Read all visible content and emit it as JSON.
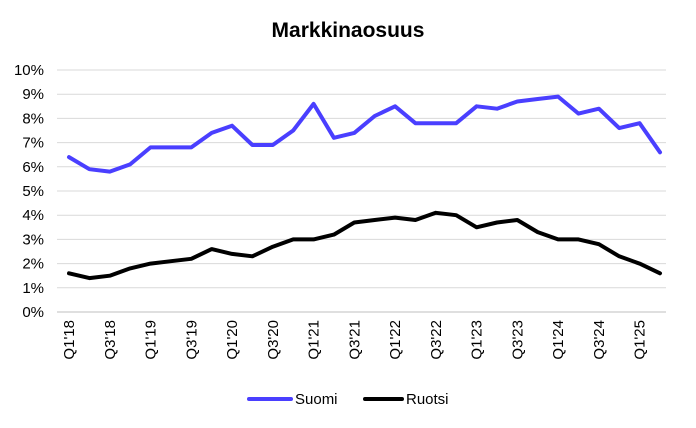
{
  "chart_data": {
    "type": "line",
    "title": "Markkinaosuus",
    "xlabel": "",
    "ylabel": "",
    "ylim": [
      0,
      10
    ],
    "y_ticks": [
      "0%",
      "1%",
      "2%",
      "3%",
      "4%",
      "5%",
      "6%",
      "7%",
      "8%",
      "9%",
      "10%"
    ],
    "grid": "horizontal",
    "legend_position": "bottom",
    "categories": [
      "Q1'18",
      "Q2'18",
      "Q3'18",
      "Q4'18",
      "Q1'19",
      "Q2'19",
      "Q3'19",
      "Q4'19",
      "Q1'20",
      "Q2'20",
      "Q3'20",
      "Q4'20",
      "Q1'21",
      "Q2'21",
      "Q3'21",
      "Q4'21",
      "Q1'22",
      "Q2'22",
      "Q3'22",
      "Q4'22",
      "Q1'23",
      "Q2'23",
      "Q3'23",
      "Q4'23",
      "Q1'24",
      "Q2'24",
      "Q3'24",
      "Q4'24",
      "Q1'25",
      "Q2'25"
    ],
    "x_tick_labels": [
      "Q1'18",
      "Q3'18",
      "Q1'19",
      "Q3'19",
      "Q1'20",
      "Q3'20",
      "Q1'21",
      "Q3'21",
      "Q1'22",
      "Q3'22",
      "Q1'23",
      "Q3'23",
      "Q1'24",
      "Q3'24",
      "Q1'25"
    ],
    "series": [
      {
        "name": "Suomi",
        "color": "#4a3fff",
        "values": [
          6.4,
          5.9,
          5.8,
          6.1,
          6.8,
          6.8,
          6.8,
          7.4,
          7.7,
          6.9,
          6.9,
          7.5,
          8.6,
          7.2,
          7.4,
          8.1,
          8.5,
          7.8,
          7.8,
          7.8,
          8.5,
          8.4,
          8.7,
          8.8,
          8.9,
          8.2,
          8.4,
          7.6,
          7.8,
          6.6
        ]
      },
      {
        "name": "Ruotsi",
        "color": "#000000",
        "values": [
          1.6,
          1.4,
          1.5,
          1.8,
          2.0,
          2.1,
          2.2,
          2.6,
          2.4,
          2.3,
          2.7,
          3.0,
          3.0,
          3.2,
          3.7,
          3.8,
          3.9,
          3.8,
          4.1,
          4.0,
          3.5,
          3.7,
          3.8,
          3.3,
          3.0,
          3.0,
          2.8,
          2.3,
          2.0,
          1.6
        ]
      }
    ]
  }
}
